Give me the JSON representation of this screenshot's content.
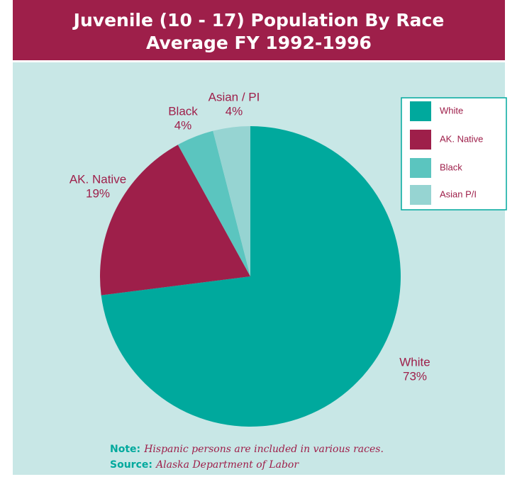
{
  "chart_data": {
    "type": "pie",
    "title": "Juvenile (10 - 17) Population By Race",
    "subtitle": "Average FY 1992-1996",
    "categories": [
      "White",
      "AK. Native",
      "Black",
      "Asian P/I"
    ],
    "labels": [
      "White",
      "AK. Native",
      "Black",
      "Asian / PI"
    ],
    "values": [
      73,
      19,
      4,
      4
    ],
    "value_labels": [
      "73%",
      "19%",
      "4%",
      "4%"
    ],
    "colors": [
      "#00a99d",
      "#9e1f4a",
      "#5bc5bf",
      "#96d4d2"
    ],
    "legend": "upper right",
    "note_label": "Note:",
    "note": "Hispanic persons are included in various races.",
    "source_label": "Source:",
    "source": "Alaska Department of Labor"
  }
}
